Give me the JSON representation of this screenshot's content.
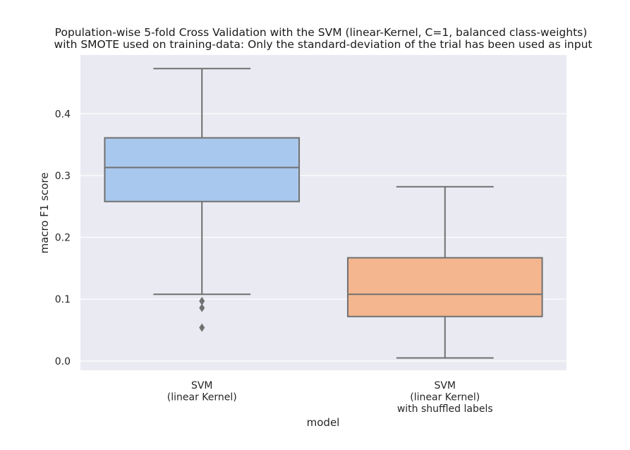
{
  "chart_data": {
    "type": "box",
    "title_lines": [
      "Population-wise 5-fold Cross Validation with the SVM (linear-Kernel, C=1, balanced class-weights)",
      "with SMOTE used on training-data: Only the standard-deviation of the trial has been used as input"
    ],
    "xlabel": "model",
    "ylabel": "macro F1 score",
    "ylim": [
      -0.015,
      0.495
    ],
    "yticks": [
      0.0,
      0.1,
      0.2,
      0.3,
      0.4
    ],
    "ytick_labels": [
      "0.0",
      "0.1",
      "0.2",
      "0.3",
      "0.4"
    ],
    "grid": true,
    "background_color": "#eaeaf2",
    "line_color": "#707070",
    "boxes": [
      {
        "label_lines": [
          "SVM",
          "(linear Kernel)"
        ],
        "color": "#a9c8ee",
        "whisker_low": 0.108,
        "q1": 0.258,
        "median": 0.313,
        "q3": 0.361,
        "whisker_high": 0.473,
        "outliers": [
          0.097,
          0.086,
          0.054
        ]
      },
      {
        "label_lines": [
          "SVM",
          "(linear Kernel)",
          "with shuffled labels"
        ],
        "color": "#f4b68f",
        "whisker_low": 0.005,
        "q1": 0.072,
        "median": 0.108,
        "q3": 0.167,
        "whisker_high": 0.282,
        "outliers": []
      }
    ]
  }
}
